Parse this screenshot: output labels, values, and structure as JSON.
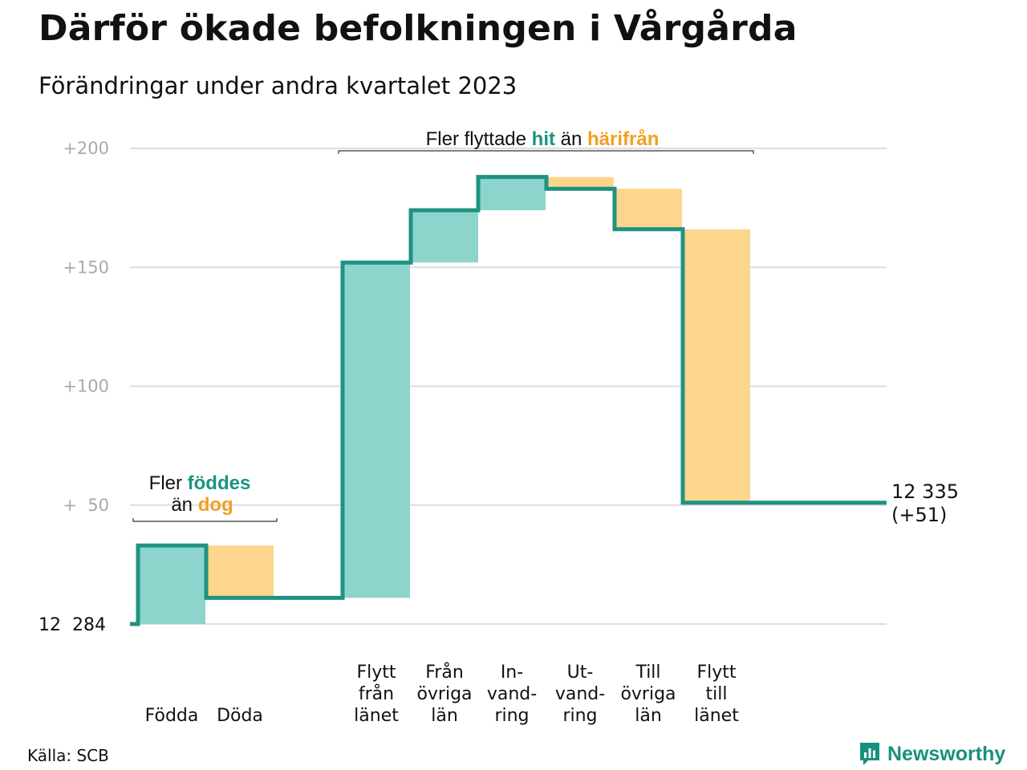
{
  "title": "Därför ökade befolkningen i Vårgårda",
  "subtitle": "Förändringar under andra kvartalet 2023",
  "source": "Källa: SCB",
  "brand": "Newsworthy",
  "colors": {
    "increase": "#8dd4cc",
    "decrease": "#fbd68c",
    "line": "#1f9282",
    "grid": "#dddddd",
    "tick": "#aaaaaa",
    "accent_teal": "#1a9484",
    "accent_orange": "#f2a022"
  },
  "annotations": {
    "births_deaths": {
      "pre": "Fler",
      "highlight1": "föddes",
      "mid": "än",
      "highlight2": "dog"
    },
    "migration": {
      "pre": "Fler flyttade",
      "highlight1": "hit",
      "mid": "än",
      "highlight2": "härifrån"
    }
  },
  "chart_data": {
    "type": "waterfall",
    "base_label": "12  284",
    "end_label": [
      "12 335",
      "(+51)"
    ],
    "ylim": [
      0,
      200
    ],
    "yticks": [
      {
        "value": 200,
        "label": "+200"
      },
      {
        "value": 150,
        "label": "+150"
      },
      {
        "value": 100,
        "label": "+100"
      },
      {
        "value": 50,
        "label": "+  50"
      }
    ],
    "steps": [
      {
        "label": [
          "Födda"
        ],
        "change": 33,
        "group": 1
      },
      {
        "label": [
          "Döda"
        ],
        "change": -22,
        "group": 1
      },
      {
        "label": [
          "Flytt",
          "från",
          "länet"
        ],
        "change": 141,
        "group": 2
      },
      {
        "label": [
          "Från",
          "övriga",
          "län"
        ],
        "change": 22,
        "group": 2
      },
      {
        "label": [
          "In-",
          "vand-",
          "ring"
        ],
        "change": 14,
        "group": 2
      },
      {
        "label": [
          "Ut-",
          "vand-",
          "ring"
        ],
        "change": -5,
        "group": 2
      },
      {
        "label": [
          "Till",
          "övriga",
          "län"
        ],
        "change": -17,
        "group": 2
      },
      {
        "label": [
          "Flytt",
          "till",
          "länet"
        ],
        "change": -115,
        "group": 2
      }
    ],
    "final_change": 51
  }
}
